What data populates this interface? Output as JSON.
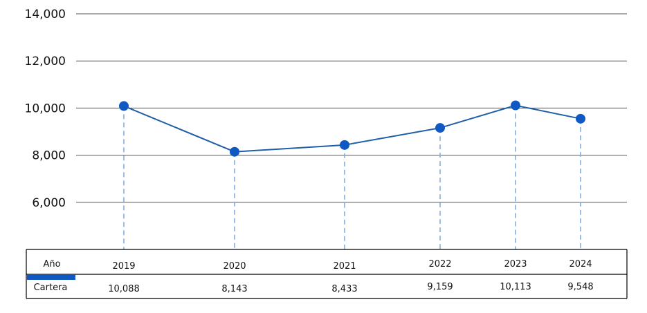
{
  "chart_data": {
    "type": "line",
    "categories": [
      "2019",
      "2020",
      "2021",
      "2022",
      "2023",
      "2024"
    ],
    "series": [
      {
        "name": "Cartera",
        "values": [
          10088,
          8143,
          8433,
          9159,
          10113,
          9548
        ]
      }
    ],
    "y_ticks": [
      "14,000",
      "12,000",
      "10,000",
      "8,000",
      "6,000"
    ],
    "y_tick_values": [
      14000,
      12000,
      10000,
      8000,
      6000
    ],
    "ylim": [
      4000,
      14000
    ],
    "grid": true,
    "table": {
      "header_label": "Año",
      "row_label": "Cartera",
      "value_labels": [
        "10,088",
        "8,143",
        "8,433",
        "9,159",
        "10,113",
        "9,548"
      ]
    },
    "colors": {
      "line": "#1f5fa8",
      "marker": "#1059c2",
      "drop_line": "#7fb0df",
      "legend_swatch": "#1059c2",
      "grid": "#555555"
    }
  }
}
